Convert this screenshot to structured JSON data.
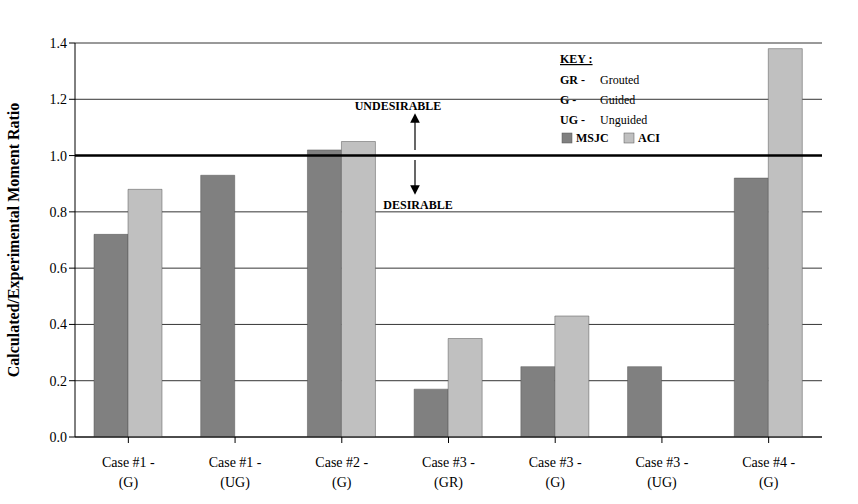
{
  "chart_data": {
    "type": "bar",
    "categories": [
      "Case #1 -\n(G)",
      "Case #1 -\n(UG)",
      "Case #2 -\n(G)",
      "Case #3 -\n(GR)",
      "Case #3 -\n(G)",
      "Case #3 -\n(UG)",
      "Case #4 -\n(G)"
    ],
    "series": [
      {
        "name": "MSJC",
        "color": "#808080",
        "values": [
          0.72,
          0.93,
          1.02,
          0.17,
          0.25,
          0.25,
          0.92
        ]
      },
      {
        "name": "ACI",
        "color": "#c0c0c0",
        "values": [
          0.88,
          null,
          1.05,
          0.35,
          0.43,
          null,
          1.38
        ]
      }
    ],
    "y_label": "Calculated/Experimental Moment Ratio",
    "ylim": [
      0,
      1.4
    ],
    "yticks": [
      {
        "value": 0,
        "label": "0.0"
      },
      0.2,
      0.4,
      0.6,
      0.8,
      {
        "value": 1,
        "label": "1.0"
      },
      1.2,
      1.4
    ],
    "grid": true,
    "reference_line": 1,
    "annotations": [
      "UNDESIRABLE",
      "DESIRABLE"
    ],
    "key": {
      "title": "KEY :",
      "entries": [
        {
          "abbr": "GR -",
          "text": "Grouted"
        },
        {
          "abbr": "G -",
          "text": "Guided"
        },
        {
          "abbr": "UG -",
          "text": "Unguided"
        }
      ]
    }
  }
}
